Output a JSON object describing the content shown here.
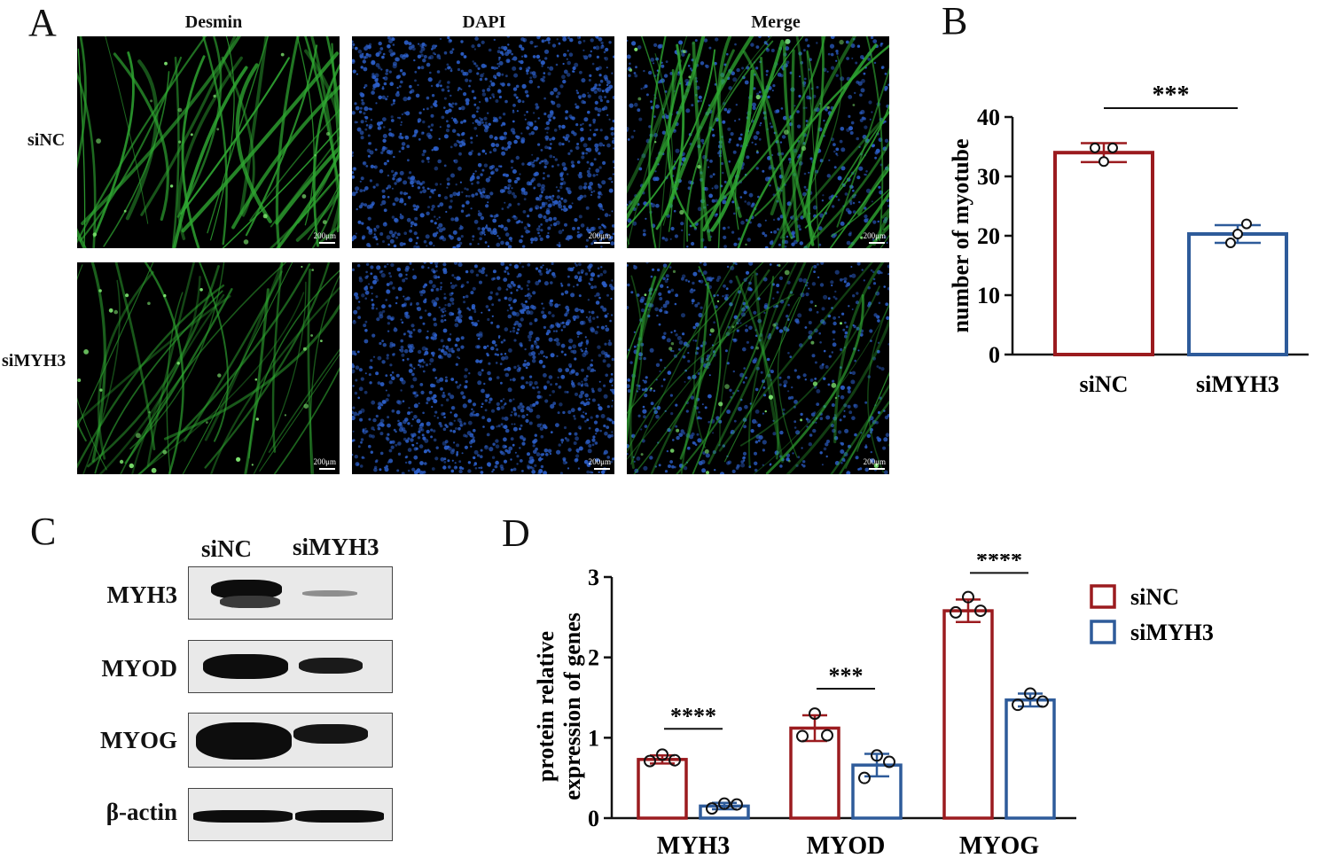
{
  "panels": {
    "a": "A",
    "b": "B",
    "c": "C",
    "d": "D"
  },
  "panel_a": {
    "columns": [
      "Desmin",
      "DAPI",
      "Merge"
    ],
    "rows": [
      "siNC",
      "siMYH3"
    ],
    "scale_label": "200μm",
    "colors": {
      "desmin": "#2fa832",
      "dapi": "#2c5fc9"
    }
  },
  "panel_c": {
    "lanes": [
      "siNC",
      "siMYH3"
    ],
    "proteins": [
      "MYH3",
      "MYOD",
      "MYOG",
      "β-actin"
    ],
    "band_intensity": {
      "MYH3": [
        1.0,
        0.08
      ],
      "MYOD": [
        1.0,
        0.55
      ],
      "MYOG": [
        1.0,
        0.6
      ],
      "β-actin": [
        1.0,
        1.0
      ]
    }
  },
  "chart_data": [
    {
      "type": "bar",
      "id": "B",
      "categories": [
        "siNC",
        "siMYH3"
      ],
      "values": [
        34,
        20.3
      ],
      "errors": [
        1.6,
        1.5
      ],
      "points": [
        [
          32.5,
          34.8,
          34.8
        ],
        [
          18.8,
          20.3,
          22.0
        ]
      ],
      "ylabel": "number of myotube",
      "xlabel": "",
      "ylim": [
        0,
        40
      ],
      "yticks": [
        0,
        10,
        20,
        30,
        40
      ],
      "significance": [
        {
          "from": 0,
          "to": 1,
          "label": "***"
        }
      ],
      "colors": [
        "#9b1b1f",
        "#2e5b9a"
      ]
    },
    {
      "type": "bar",
      "id": "D",
      "categories": [
        "MYH3",
        "MYOD",
        "MYOG"
      ],
      "series": [
        {
          "name": "siNC",
          "values": [
            0.73,
            1.12,
            2.58
          ],
          "errors": [
            0.05,
            0.16,
            0.14
          ],
          "points": [
            [
              0.71,
              0.72,
              0.79
            ],
            [
              1.02,
              1.03,
              1.3
            ],
            [
              2.56,
              2.58,
              2.75
            ]
          ],
          "color": "#9b1b1f"
        },
        {
          "name": "siMYH3",
          "values": [
            0.15,
            0.66,
            1.47
          ],
          "errors": [
            0.04,
            0.14,
            0.08
          ],
          "points": [
            [
              0.12,
              0.17,
              0.18
            ],
            [
              0.5,
              0.7,
              0.78
            ],
            [
              1.41,
              1.45,
              1.55
            ]
          ],
          "color": "#2e5b9a"
        }
      ],
      "ylabel_lines": [
        "protein relative",
        "expression of  genes"
      ],
      "xlabel": "",
      "ylim": [
        0,
        3
      ],
      "yticks": [
        0,
        1,
        2,
        3
      ],
      "significance": [
        {
          "category": 0,
          "label": "****"
        },
        {
          "category": 1,
          "label": "***"
        },
        {
          "category": 2,
          "label": "****"
        }
      ],
      "legend": "right"
    }
  ]
}
